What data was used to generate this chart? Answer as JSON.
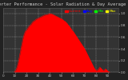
{
  "title": "Solar Pv/Inverter Performance - Solar Radiation & Day Average per Minute",
  "bg_color": "#222222",
  "plot_bg_color": "#333333",
  "grid_color": "#ffffff",
  "fill_color": "#ff0000",
  "line_color": "#ff0000",
  "legend_entries": [
    "Current",
    "Avg",
    "Min",
    "Max"
  ],
  "legend_colors": [
    "#ff0000",
    "#0000ff",
    "#00ff00",
    "#ffff00"
  ],
  "x_values": [
    0,
    1,
    2,
    3,
    4,
    5,
    6,
    7,
    8,
    9,
    10,
    11,
    12,
    13,
    14,
    15,
    16,
    17,
    18,
    19,
    20,
    21,
    22,
    23,
    24,
    25,
    26,
    27,
    28,
    29,
    30,
    31,
    32,
    33,
    34,
    35,
    36,
    37,
    38,
    39,
    40,
    41,
    42,
    43,
    44,
    45,
    46,
    47,
    48,
    49,
    50,
    51,
    52,
    53,
    54,
    55,
    56,
    57,
    58,
    59,
    60,
    61,
    62,
    63,
    64,
    65,
    66,
    67,
    68,
    69,
    70,
    71,
    72,
    73,
    74,
    75,
    76,
    77,
    78,
    79,
    80,
    81,
    82,
    83,
    84,
    85,
    86,
    87,
    88,
    89,
    90,
    91,
    92,
    93,
    94,
    95,
    96,
    97,
    98,
    99
  ],
  "y_values": [
    0,
    0,
    0,
    0,
    0,
    0,
    0,
    0,
    0,
    0,
    0.02,
    0.05,
    0.1,
    0.18,
    0.28,
    0.38,
    0.48,
    0.58,
    0.65,
    0.7,
    0.72,
    0.75,
    0.78,
    0.8,
    0.82,
    0.85,
    0.87,
    0.88,
    0.9,
    0.91,
    0.92,
    0.93,
    0.94,
    0.95,
    0.96,
    0.97,
    0.975,
    0.98,
    0.985,
    0.99,
    1.0,
    0.995,
    0.99,
    0.98,
    0.97,
    0.96,
    0.95,
    0.94,
    0.93,
    0.92,
    0.91,
    0.9,
    0.88,
    0.87,
    0.85,
    0.83,
    0.8,
    0.78,
    0.75,
    0.72,
    0.7,
    0.67,
    0.64,
    0.61,
    0.58,
    0.55,
    0.52,
    0.49,
    0.46,
    0.43,
    0.4,
    0.36,
    0.32,
    0.28,
    0.24,
    0.2,
    0.16,
    0.12,
    0.08,
    0.05,
    0.03,
    0.04,
    0.06,
    0.09,
    0.07,
    0.05,
    0.03,
    0.04,
    0.06,
    0.04,
    0.02,
    0.01,
    0,
    0,
    0,
    0,
    0,
    0,
    0,
    0
  ],
  "ylim": [
    0,
    1.1
  ],
  "yticks": [
    0,
    0.2,
    0.4,
    0.6,
    0.8,
    1.0
  ],
  "title_fontsize": 4,
  "tick_fontsize": 3,
  "legend_fontsize": 3
}
